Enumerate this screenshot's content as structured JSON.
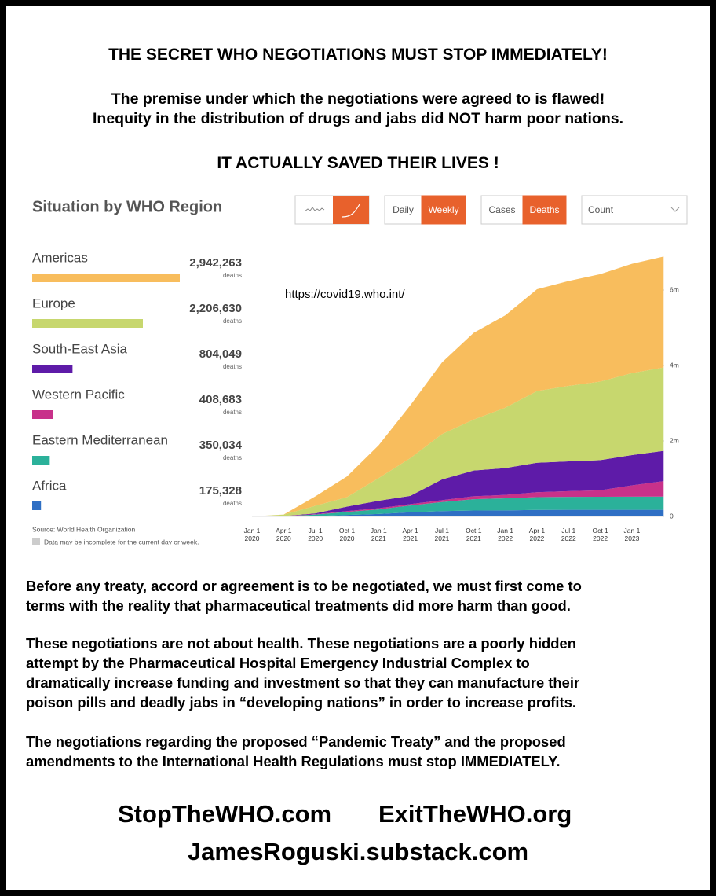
{
  "header": {
    "title": "THE SECRET WHO NEGOTIATIONS MUST STOP IMMEDIATELY!",
    "lines": [
      "The premise under which the negotiations were agreed to is flawed!",
      "Inequity in the distribution of drugs and jabs did NOT harm poor nations."
    ],
    "emphasis": "IT ACTUALLY SAVED THEIR LIVES !"
  },
  "dashboard": {
    "title": "Situation by WHO Region",
    "controls": [
      "Daily",
      "Weekly",
      "Cases",
      "Deaths",
      "Count"
    ],
    "source": "Source: World Health Organization",
    "note": "Data may be incomplete for the current day or week."
  },
  "chart_data": {
    "type": "area",
    "stacked": true,
    "annotation": "https://covid19.who.int/",
    "categories": [
      "Jan 1 2020",
      "Apr 1 2020",
      "Jul 1 2020",
      "Oct 1 2020",
      "Jan 1 2021",
      "Apr 1 2021",
      "Jul 1 2021",
      "Oct 1 2021",
      "Jan 1 2022",
      "Apr 1 2022",
      "Jul 1 2022",
      "Oct 1 2022",
      "Jan 1 2023",
      null
    ],
    "series": [
      {
        "name": "Americas",
        "color": "#f8bd5d",
        "values": [
          0,
          5000,
          250000,
          550000,
          870000,
          1400000,
          1900000,
          2300000,
          2450000,
          2700000,
          2780000,
          2850000,
          2900000,
          2942263
        ]
      },
      {
        "name": "Europe",
        "color": "#c7d76e",
        "values": [
          0,
          35000,
          200000,
          250000,
          600000,
          1000000,
          1200000,
          1350000,
          1600000,
          1900000,
          2000000,
          2080000,
          2170000,
          2206630
        ]
      },
      {
        "name": "South-East Asia",
        "color": "#5e1ba8",
        "values": [
          0,
          500,
          20000,
          120000,
          200000,
          220000,
          550000,
          680000,
          710000,
          780000,
          790000,
          800000,
          802000,
          804049
        ]
      },
      {
        "name": "Western Pacific",
        "color": "#c8318a",
        "values": [
          0,
          5000,
          10000,
          20000,
          30000,
          35000,
          50000,
          80000,
          90000,
          130000,
          150000,
          170000,
          300000,
          408683
        ]
      },
      {
        "name": "Eastern Mediterranean",
        "color": "#2bb19a",
        "values": [
          0,
          5000,
          40000,
          80000,
          120000,
          180000,
          240000,
          300000,
          320000,
          340000,
          345000,
          347000,
          349000,
          350034
        ]
      },
      {
        "name": "Africa",
        "color": "#2f6fc4",
        "values": [
          0,
          200,
          10000,
          40000,
          65000,
          110000,
          140000,
          155000,
          160000,
          171000,
          174000,
          175000,
          175000,
          175328
        ]
      }
    ],
    "totals": [
      2942263,
      2206630,
      804049,
      408683,
      350034,
      175328
    ],
    "total_labels": [
      "2,942,263",
      "2,206,630",
      "804,049",
      "408,683",
      "350,034",
      "175,328"
    ],
    "total_unit": "deaths",
    "ylim": [
      0,
      7000000
    ],
    "yticks": [
      0,
      {
        "value": 2000000,
        "label": "2m"
      },
      {
        "value": 4000000,
        "label": "4m"
      },
      {
        "value": 6000000,
        "label": "6m"
      }
    ]
  },
  "body": {
    "paragraphs": [
      [
        "Before any treaty, accord or agreement is to be negotiated, we must first come to",
        "terms with the reality that pharmaceutical treatments did more harm than good."
      ],
      [
        "These negotiations are not about health. These negotiations are a poorly hidden",
        "attempt by the Pharmaceutical Hospital Emergency Industrial Complex to",
        "dramatically increase funding and investment so that they can manufacture their",
        "poison pills and deadly jabs in “developing nations” in order to increase profits."
      ],
      [
        "The negotiations regarding the proposed “Pandemic Treaty” and the proposed",
        "amendments to the International Health Regulations must stop IMMEDIATELY."
      ]
    ]
  },
  "footer": {
    "links": [
      "StopTheWHO.com",
      "ExitTheWHO.org",
      "JamesRoguski.substack.com"
    ]
  }
}
